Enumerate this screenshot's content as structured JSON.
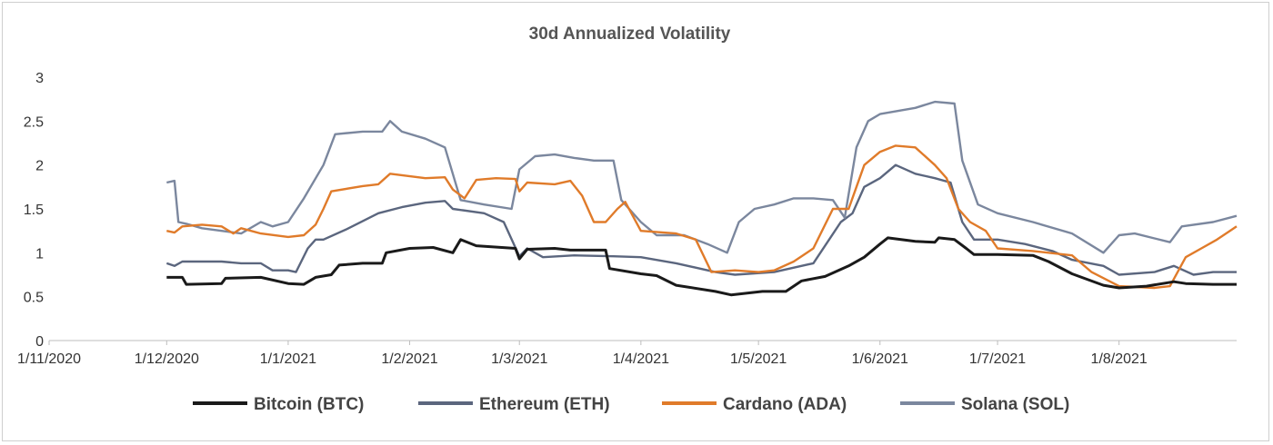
{
  "chart_data": {
    "type": "line",
    "title": "30d Annualized Volatility",
    "xlabel": "",
    "ylabel": "",
    "ylim": [
      0,
      3
    ],
    "y_ticks": [
      "0",
      "0.5",
      "1",
      "1.5",
      "2",
      "2.5",
      "3"
    ],
    "x_ticks": [
      "1/11/2020",
      "1/12/2020",
      "1/1/2021",
      "1/2/2021",
      "1/3/2021",
      "1/4/2021",
      "1/5/2021",
      "1/6/2021",
      "1/7/2021",
      "1/8/2021"
    ],
    "x_range": [
      "2020-11-01",
      "2021-08-31"
    ],
    "grid": false,
    "legend_position": "bottom",
    "series": [
      {
        "name": "Bitcoin (BTC)",
        "color": "#1a1a1a",
        "points": [
          [
            "2020-12-01",
            0.72
          ],
          [
            "2020-12-05",
            0.72
          ],
          [
            "2020-12-06",
            0.64
          ],
          [
            "2020-12-15",
            0.65
          ],
          [
            "2020-12-16",
            0.71
          ],
          [
            "2020-12-25",
            0.72
          ],
          [
            "2021-01-01",
            0.65
          ],
          [
            "2021-01-05",
            0.64
          ],
          [
            "2021-01-08",
            0.72
          ],
          [
            "2021-01-12",
            0.75
          ],
          [
            "2021-01-14",
            0.86
          ],
          [
            "2021-01-20",
            0.88
          ],
          [
            "2021-01-25",
            0.88
          ],
          [
            "2021-01-26",
            1.0
          ],
          [
            "2021-02-01",
            1.05
          ],
          [
            "2021-02-07",
            1.06
          ],
          [
            "2021-02-12",
            1.0
          ],
          [
            "2021-02-14",
            1.15
          ],
          [
            "2021-02-18",
            1.08
          ],
          [
            "2021-02-28",
            1.05
          ],
          [
            "2021-03-01",
            0.93
          ],
          [
            "2021-03-03",
            1.04
          ],
          [
            "2021-03-10",
            1.05
          ],
          [
            "2021-03-14",
            1.03
          ],
          [
            "2021-03-23",
            1.03
          ],
          [
            "2021-03-24",
            0.82
          ],
          [
            "2021-04-01",
            0.76
          ],
          [
            "2021-04-05",
            0.74
          ],
          [
            "2021-04-10",
            0.63
          ],
          [
            "2021-04-20",
            0.56
          ],
          [
            "2021-04-24",
            0.52
          ],
          [
            "2021-05-02",
            0.56
          ],
          [
            "2021-05-08",
            0.56
          ],
          [
            "2021-05-12",
            0.68
          ],
          [
            "2021-05-18",
            0.73
          ],
          [
            "2021-05-24",
            0.85
          ],
          [
            "2021-05-28",
            0.95
          ],
          [
            "2021-06-01",
            1.1
          ],
          [
            "2021-06-03",
            1.17
          ],
          [
            "2021-06-10",
            1.13
          ],
          [
            "2021-06-15",
            1.12
          ],
          [
            "2021-06-16",
            1.17
          ],
          [
            "2021-06-20",
            1.15
          ],
          [
            "2021-06-23",
            1.05
          ],
          [
            "2021-06-25",
            0.98
          ],
          [
            "2021-07-01",
            0.98
          ],
          [
            "2021-07-10",
            0.97
          ],
          [
            "2021-07-14",
            0.9
          ],
          [
            "2021-07-20",
            0.76
          ],
          [
            "2021-07-28",
            0.63
          ],
          [
            "2021-08-01",
            0.6
          ],
          [
            "2021-08-08",
            0.62
          ],
          [
            "2021-08-15",
            0.67
          ],
          [
            "2021-08-18",
            0.65
          ],
          [
            "2021-08-25",
            0.64
          ],
          [
            "2021-08-31",
            0.64
          ]
        ]
      },
      {
        "name": "Ethereum (ETH)",
        "color": "#5b667e",
        "points": [
          [
            "2020-12-01",
            0.88
          ],
          [
            "2020-12-03",
            0.85
          ],
          [
            "2020-12-05",
            0.9
          ],
          [
            "2020-12-15",
            0.9
          ],
          [
            "2020-12-20",
            0.88
          ],
          [
            "2020-12-25",
            0.88
          ],
          [
            "2020-12-28",
            0.8
          ],
          [
            "2021-01-01",
            0.8
          ],
          [
            "2021-01-03",
            0.78
          ],
          [
            "2021-01-06",
            1.05
          ],
          [
            "2021-01-08",
            1.15
          ],
          [
            "2021-01-10",
            1.15
          ],
          [
            "2021-01-16",
            1.27
          ],
          [
            "2021-01-24",
            1.45
          ],
          [
            "2021-01-30",
            1.52
          ],
          [
            "2021-02-05",
            1.57
          ],
          [
            "2021-02-10",
            1.59
          ],
          [
            "2021-02-12",
            1.5
          ],
          [
            "2021-02-20",
            1.45
          ],
          [
            "2021-02-25",
            1.35
          ],
          [
            "2021-03-01",
            0.96
          ],
          [
            "2021-03-03",
            1.05
          ],
          [
            "2021-03-07",
            0.95
          ],
          [
            "2021-03-15",
            0.97
          ],
          [
            "2021-03-25",
            0.96
          ],
          [
            "2021-04-01",
            0.95
          ],
          [
            "2021-04-10",
            0.88
          ],
          [
            "2021-04-20",
            0.78
          ],
          [
            "2021-04-25",
            0.75
          ],
          [
            "2021-05-05",
            0.78
          ],
          [
            "2021-05-15",
            0.88
          ],
          [
            "2021-05-22",
            1.35
          ],
          [
            "2021-05-25",
            1.45
          ],
          [
            "2021-05-28",
            1.75
          ],
          [
            "2021-06-01",
            1.85
          ],
          [
            "2021-06-05",
            2.0
          ],
          [
            "2021-06-10",
            1.9
          ],
          [
            "2021-06-15",
            1.85
          ],
          [
            "2021-06-19",
            1.8
          ],
          [
            "2021-06-22",
            1.35
          ],
          [
            "2021-06-25",
            1.15
          ],
          [
            "2021-07-01",
            1.15
          ],
          [
            "2021-07-08",
            1.1
          ],
          [
            "2021-07-15",
            1.02
          ],
          [
            "2021-07-20",
            0.92
          ],
          [
            "2021-07-28",
            0.85
          ],
          [
            "2021-08-01",
            0.75
          ],
          [
            "2021-08-10",
            0.78
          ],
          [
            "2021-08-15",
            0.85
          ],
          [
            "2021-08-20",
            0.75
          ],
          [
            "2021-08-25",
            0.78
          ],
          [
            "2021-08-31",
            0.78
          ]
        ]
      },
      {
        "name": "Cardano (ADA)",
        "color": "#e07b2a",
        "points": [
          [
            "2020-12-01",
            1.25
          ],
          [
            "2020-12-03",
            1.23
          ],
          [
            "2020-12-05",
            1.3
          ],
          [
            "2020-12-10",
            1.32
          ],
          [
            "2020-12-15",
            1.3
          ],
          [
            "2020-12-18",
            1.22
          ],
          [
            "2020-12-20",
            1.28
          ],
          [
            "2020-12-25",
            1.22
          ],
          [
            "2021-01-01",
            1.18
          ],
          [
            "2021-01-05",
            1.2
          ],
          [
            "2021-01-08",
            1.32
          ],
          [
            "2021-01-10",
            1.5
          ],
          [
            "2021-01-12",
            1.7
          ],
          [
            "2021-01-20",
            1.76
          ],
          [
            "2021-01-24",
            1.78
          ],
          [
            "2021-01-27",
            1.9
          ],
          [
            "2021-02-05",
            1.85
          ],
          [
            "2021-02-10",
            1.86
          ],
          [
            "2021-02-12",
            1.72
          ],
          [
            "2021-02-15",
            1.62
          ],
          [
            "2021-02-18",
            1.83
          ],
          [
            "2021-02-23",
            1.85
          ],
          [
            "2021-02-28",
            1.84
          ],
          [
            "2021-03-01",
            1.7
          ],
          [
            "2021-03-03",
            1.8
          ],
          [
            "2021-03-10",
            1.78
          ],
          [
            "2021-03-14",
            1.82
          ],
          [
            "2021-03-17",
            1.65
          ],
          [
            "2021-03-20",
            1.35
          ],
          [
            "2021-03-23",
            1.35
          ],
          [
            "2021-03-26",
            1.5
          ],
          [
            "2021-03-28",
            1.58
          ],
          [
            "2021-04-01",
            1.25
          ],
          [
            "2021-04-10",
            1.22
          ],
          [
            "2021-04-15",
            1.15
          ],
          [
            "2021-04-19",
            0.78
          ],
          [
            "2021-04-25",
            0.8
          ],
          [
            "2021-05-01",
            0.78
          ],
          [
            "2021-05-05",
            0.8
          ],
          [
            "2021-05-10",
            0.9
          ],
          [
            "2021-05-15",
            1.05
          ],
          [
            "2021-05-20",
            1.5
          ],
          [
            "2021-05-24",
            1.5
          ],
          [
            "2021-05-26",
            1.75
          ],
          [
            "2021-05-28",
            2.0
          ],
          [
            "2021-06-01",
            2.15
          ],
          [
            "2021-06-05",
            2.22
          ],
          [
            "2021-06-10",
            2.2
          ],
          [
            "2021-06-15",
            2.0
          ],
          [
            "2021-06-18",
            1.85
          ],
          [
            "2021-06-21",
            1.5
          ],
          [
            "2021-06-24",
            1.35
          ],
          [
            "2021-06-28",
            1.25
          ],
          [
            "2021-07-01",
            1.05
          ],
          [
            "2021-07-10",
            1.02
          ],
          [
            "2021-07-20",
            0.97
          ],
          [
            "2021-07-25",
            0.78
          ],
          [
            "2021-08-01",
            0.62
          ],
          [
            "2021-08-10",
            0.6
          ],
          [
            "2021-08-14",
            0.62
          ],
          [
            "2021-08-18",
            0.95
          ],
          [
            "2021-08-22",
            1.05
          ],
          [
            "2021-08-26",
            1.15
          ],
          [
            "2021-08-31",
            1.3
          ]
        ]
      },
      {
        "name": "Solana (SOL)",
        "color": "#7b879e",
        "points": [
          [
            "2020-12-01",
            1.8
          ],
          [
            "2020-12-03",
            1.82
          ],
          [
            "2020-12-04",
            1.35
          ],
          [
            "2020-12-06",
            1.33
          ],
          [
            "2020-12-10",
            1.28
          ],
          [
            "2020-12-15",
            1.25
          ],
          [
            "2020-12-20",
            1.22
          ],
          [
            "2020-12-25",
            1.35
          ],
          [
            "2020-12-28",
            1.3
          ],
          [
            "2021-01-01",
            1.35
          ],
          [
            "2021-01-05",
            1.62
          ],
          [
            "2021-01-10",
            2.0
          ],
          [
            "2021-01-13",
            2.35
          ],
          [
            "2021-01-20",
            2.38
          ],
          [
            "2021-01-25",
            2.38
          ],
          [
            "2021-01-27",
            2.5
          ],
          [
            "2021-01-30",
            2.38
          ],
          [
            "2021-02-05",
            2.3
          ],
          [
            "2021-02-10",
            2.2
          ],
          [
            "2021-02-14",
            1.6
          ],
          [
            "2021-02-20",
            1.55
          ],
          [
            "2021-02-27",
            1.5
          ],
          [
            "2021-03-01",
            1.95
          ],
          [
            "2021-03-05",
            2.1
          ],
          [
            "2021-03-10",
            2.12
          ],
          [
            "2021-03-15",
            2.08
          ],
          [
            "2021-03-20",
            2.05
          ],
          [
            "2021-03-25",
            2.05
          ],
          [
            "2021-03-27",
            1.6
          ],
          [
            "2021-04-01",
            1.35
          ],
          [
            "2021-04-05",
            1.2
          ],
          [
            "2021-04-12",
            1.2
          ],
          [
            "2021-04-18",
            1.1
          ],
          [
            "2021-04-23",
            1.0
          ],
          [
            "2021-04-26",
            1.35
          ],
          [
            "2021-04-30",
            1.5
          ],
          [
            "2021-05-05",
            1.55
          ],
          [
            "2021-05-10",
            1.62
          ],
          [
            "2021-05-15",
            1.62
          ],
          [
            "2021-05-20",
            1.6
          ],
          [
            "2021-05-23",
            1.4
          ],
          [
            "2021-05-26",
            2.2
          ],
          [
            "2021-05-29",
            2.5
          ],
          [
            "2021-06-01",
            2.58
          ],
          [
            "2021-06-10",
            2.65
          ],
          [
            "2021-06-15",
            2.72
          ],
          [
            "2021-06-20",
            2.7
          ],
          [
            "2021-06-22",
            2.05
          ],
          [
            "2021-06-26",
            1.55
          ],
          [
            "2021-07-01",
            1.45
          ],
          [
            "2021-07-10",
            1.35
          ],
          [
            "2021-07-20",
            1.22
          ],
          [
            "2021-07-28",
            1.0
          ],
          [
            "2021-08-01",
            1.2
          ],
          [
            "2021-08-05",
            1.22
          ],
          [
            "2021-08-14",
            1.12
          ],
          [
            "2021-08-17",
            1.3
          ],
          [
            "2021-08-25",
            1.35
          ],
          [
            "2021-08-31",
            1.42
          ]
        ]
      }
    ]
  }
}
